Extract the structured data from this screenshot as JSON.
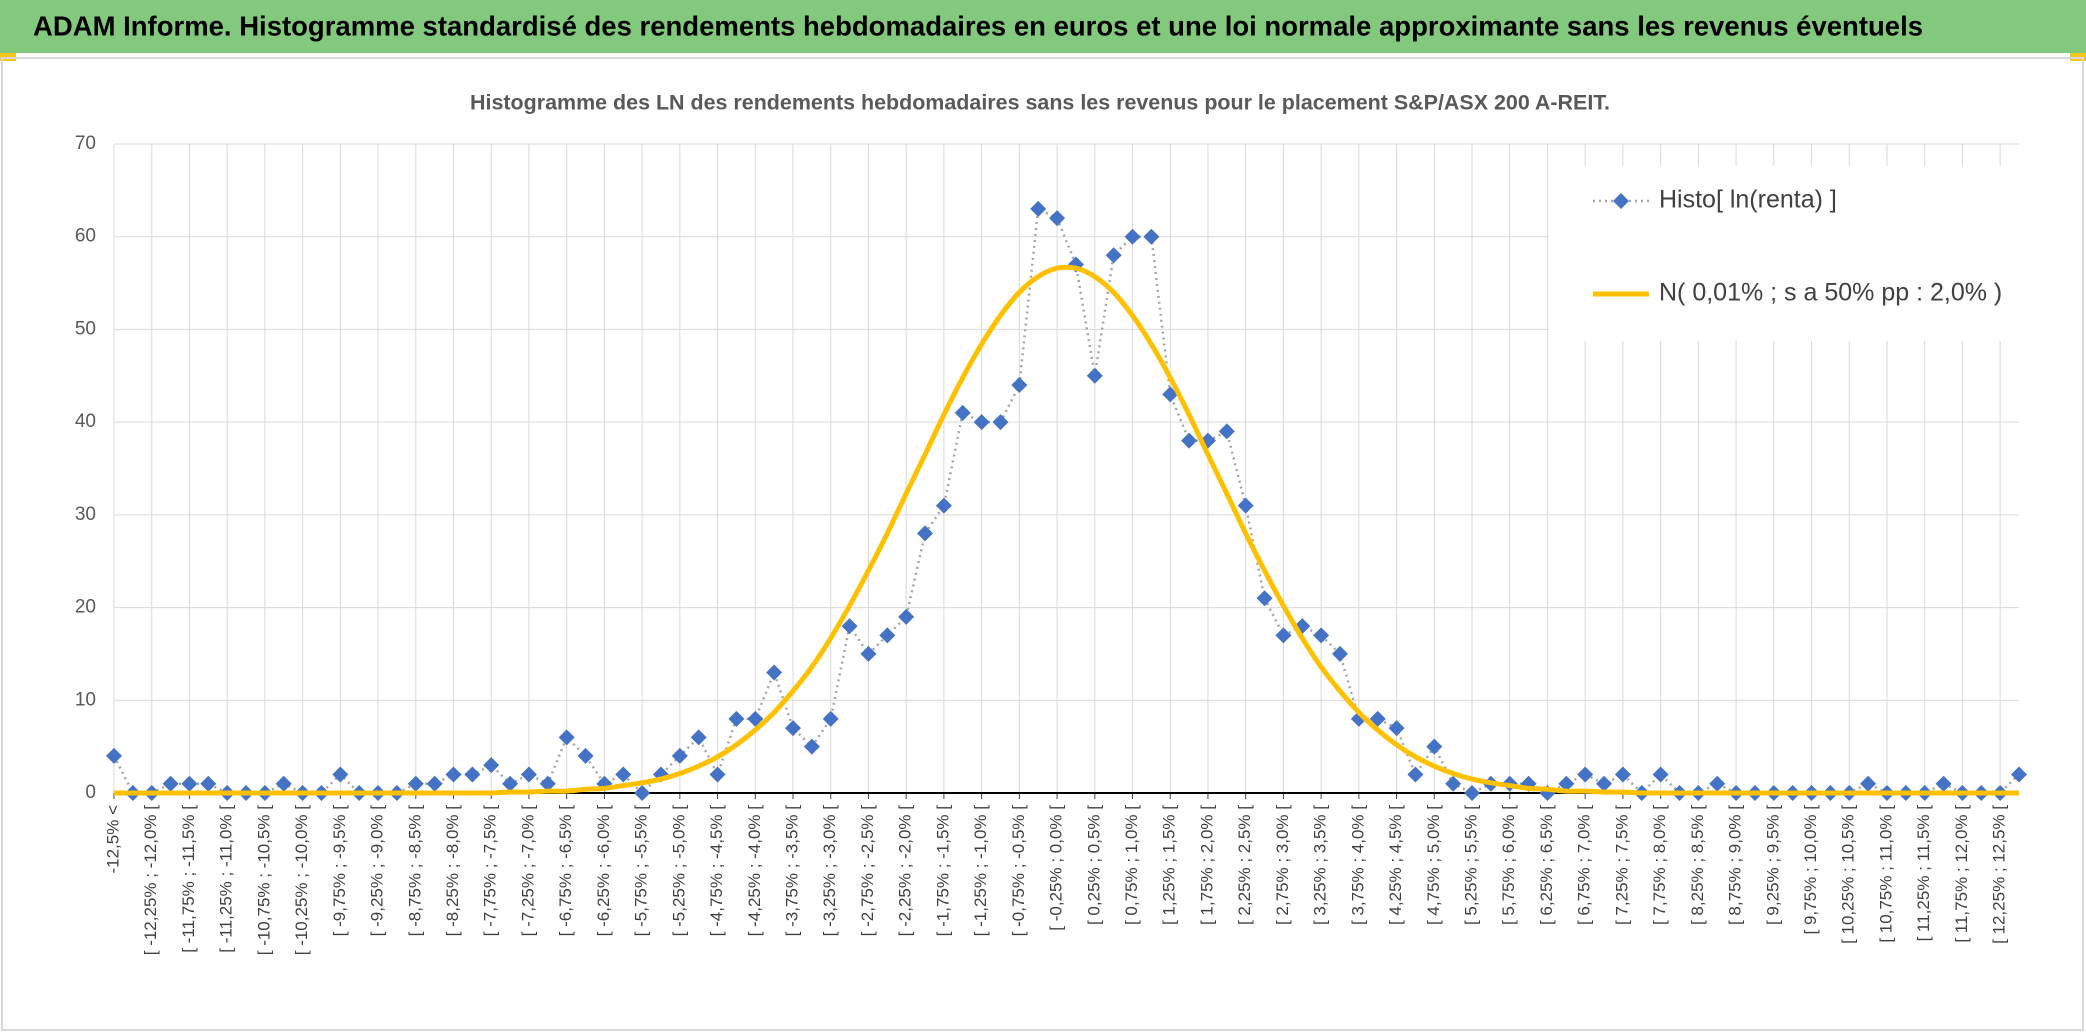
{
  "header": {
    "title": "ADAM Informe. Histogramme standardisé des rendements hebdomadaires en euros et une loi normale approximante sans les revenus éventuels"
  },
  "chart_data": {
    "type": "line",
    "title": "Histogramme des LN des rendements hebdomadaires sans les revenus pour le placement S&P/ASX 200 A-REIT.",
    "categories": [
      "-12,5% <",
      null,
      "[ -12,25% ; -12,0% [",
      null,
      "[ -11,75% ; -11,5% [",
      null,
      "[ -11,25% ; -11,0% [",
      null,
      "[ -10,75% ; -10,5% [",
      null,
      "[ -10,25% ; -10,0% [",
      null,
      "[ -9,75% ; -9,5% [",
      null,
      "[ -9,25% ; -9,0% [",
      null,
      "[ -8,75% ; -8,5% [",
      null,
      "[ -8,25% ; -8,0% [",
      null,
      "[ -7,75% ; -7,5% [",
      null,
      "[ -7,25% ; -7,0% [",
      null,
      "[ -6,75% ; -6,5% [",
      null,
      "[ -6,25% ; -6,0% [",
      null,
      "[ -5,75% ; -5,5% [",
      null,
      "[ -5,25% ; -5,0% [",
      null,
      "[ -4,75% ; -4,5% [",
      null,
      "[ -4,25% ; -4,0% [",
      null,
      "[ -3,75% ; -3,5% [",
      null,
      "[ -3,25% ; -3,0% [",
      null,
      "[ -2,75% ; -2,5% [",
      null,
      "[ -2,25% ; -2,0% [",
      null,
      "[ -1,75% ; -1,5% [",
      null,
      "[ -1,25% ; -1,0% [",
      null,
      "[ -0,75% ; -0,5% [",
      null,
      "[ -0,25% ; 0,0% [",
      null,
      "[ 0,25% ; 0,5% [",
      null,
      "[ 0,75% ; 1,0% [",
      null,
      "[ 1,25% ; 1,5% [",
      null,
      "[ 1,75% ; 2,0% [",
      null,
      "[ 2,25% ; 2,5% [",
      null,
      "[ 2,75% ; 3,0% [",
      null,
      "[ 3,25% ; 3,5% [",
      null,
      "[ 3,75% ; 4,0% [",
      null,
      "[ 4,25% ; 4,5% [",
      null,
      "[ 4,75% ; 5,0% [",
      null,
      "[ 5,25% ; 5,5% [",
      null,
      "[ 5,75% ; 6,0% [",
      null,
      "[ 6,25% ; 6,5% [",
      null,
      "[ 6,75% ; 7,0% [",
      null,
      "[ 7,25% ; 7,5% [",
      null,
      "[ 7,75% ; 8,0% [",
      null,
      "[ 8,25% ; 8,5% [",
      null,
      "[ 8,75% ; 9,0% [",
      null,
      "[ 9,25% ; 9,5% [",
      null,
      "[ 9,75% ; 10,0% [",
      null,
      "[ 10,25% ; 10,5% [",
      null,
      "[ 10,75% ; 11,0% [",
      null,
      "[ 11,25% ; 11,5% [",
      null,
      "[ 11,75% ; 12,0% [",
      null,
      "[ 12,25% ; 12,5% [",
      null
    ],
    "series": [
      {
        "name": "Histo[ ln(renta) ]",
        "color": "#4472c4",
        "line_color": "#a6a6a6",
        "line_style": "dotted",
        "marker": "diamond",
        "values": [
          4,
          0,
          0,
          1,
          1,
          1,
          0,
          0,
          0,
          1,
          0,
          0,
          2,
          0,
          0,
          0,
          1,
          1,
          2,
          2,
          3,
          1,
          2,
          1,
          6,
          4,
          1,
          2,
          0,
          2,
          4,
          6,
          2,
          8,
          8,
          13,
          7,
          5,
          8,
          18,
          15,
          17,
          19,
          28,
          31,
          41,
          40,
          40,
          44,
          63,
          62,
          57,
          45,
          58,
          60,
          60,
          43,
          38,
          38,
          39,
          31,
          21,
          17,
          18,
          17,
          15,
          8,
          8,
          7,
          2,
          5,
          1,
          0,
          1,
          1,
          1,
          0,
          1,
          2,
          1,
          2,
          0,
          2,
          0,
          0,
          1,
          0,
          0,
          0,
          0,
          0,
          0,
          0,
          1,
          0,
          0,
          0,
          1,
          0,
          0,
          0,
          2
        ]
      },
      {
        "name": "N( 0,01% ; s a 50% pp : 2,0% )",
        "color": "#ffc000",
        "line_style": "solid",
        "smooth": true,
        "values": [
          0,
          0,
          0,
          0,
          0,
          0,
          0,
          0,
          0,
          0,
          0,
          0,
          0,
          0,
          0,
          0,
          0,
          0,
          0,
          0,
          0,
          0.1,
          0.1,
          0.2,
          0.2,
          0.4,
          0.5,
          0.8,
          1.1,
          1.5,
          2.1,
          2.9,
          3.9,
          5.2,
          6.8,
          8.7,
          11.0,
          13.6,
          16.7,
          20.2,
          24.0,
          28.0,
          32.3,
          36.5,
          40.8,
          44.8,
          48.4,
          51.5,
          54.0,
          55.7,
          56.6,
          56.6,
          55.7,
          54.0,
          51.5,
          48.4,
          44.8,
          40.8,
          36.5,
          32.3,
          28.0,
          24.0,
          20.2,
          16.7,
          13.6,
          11.0,
          8.7,
          6.8,
          5.2,
          3.9,
          2.9,
          2.1,
          1.5,
          1.1,
          0.8,
          0.5,
          0.4,
          0.2,
          0.2,
          0.1,
          0.1,
          0,
          0,
          0,
          0,
          0,
          0,
          0,
          0,
          0,
          0,
          0,
          0,
          0,
          0,
          0,
          0,
          0,
          0,
          0,
          0,
          0
        ]
      }
    ],
    "ylim": [
      0,
      70
    ],
    "yticks": [
      0,
      10,
      20,
      30,
      40,
      50,
      60,
      70
    ],
    "grid": true,
    "legend": "top-right"
  }
}
